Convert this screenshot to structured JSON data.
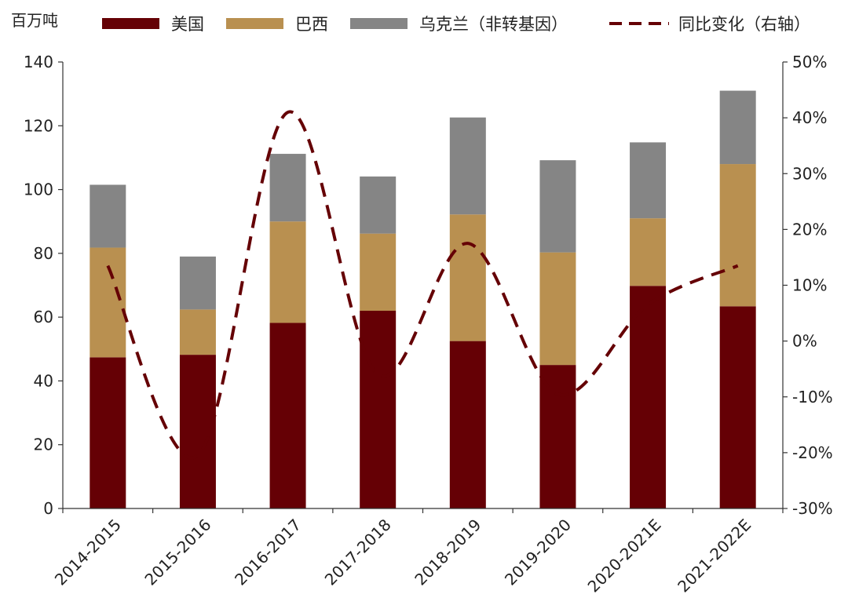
{
  "chart_data": {
    "type": "bar",
    "stacked": true,
    "unit_left": "百万吨",
    "categories": [
      "2014-2015",
      "2015-2016",
      "2016-2017",
      "2017-2018",
      "2018-2019",
      "2019-2020",
      "2020-2021E",
      "2021-2022E"
    ],
    "series": [
      {
        "name": "美国",
        "color": "#650005",
        "values": [
          47.4,
          48.2,
          58.2,
          62.0,
          52.5,
          45.0,
          69.8,
          63.4
        ]
      },
      {
        "name": "巴西",
        "color": "#b99050",
        "values": [
          34.4,
          14.2,
          31.8,
          24.2,
          39.7,
          35.3,
          21.2,
          44.6
        ]
      },
      {
        "name": "乌克兰（非转基因）",
        "color": "#858585",
        "values": [
          19.7,
          16.6,
          21.2,
          17.9,
          30.4,
          28.9,
          23.8,
          23.0
        ]
      }
    ],
    "line_series": {
      "name": "同比变化（右轴）",
      "color": "#650005",
      "style": "dashed",
      "values": [
        13.5,
        -20.5,
        41.0,
        -6.0,
        17.5,
        -9.5,
        6.5,
        13.5
      ]
    },
    "y_left": {
      "min": 0,
      "max": 140,
      "ticks": [
        0,
        20,
        40,
        60,
        80,
        100,
        120,
        140
      ]
    },
    "y_right": {
      "min": -30,
      "max": 50,
      "ticks": [
        -30,
        -20,
        -10,
        0,
        10,
        20,
        30,
        40,
        50
      ],
      "tick_labels": [
        "-30%",
        "-20%",
        "-10%",
        "0%",
        "10%",
        "20%",
        "30%",
        "40%",
        "50%"
      ]
    },
    "legend_position": "top",
    "grid": false
  }
}
